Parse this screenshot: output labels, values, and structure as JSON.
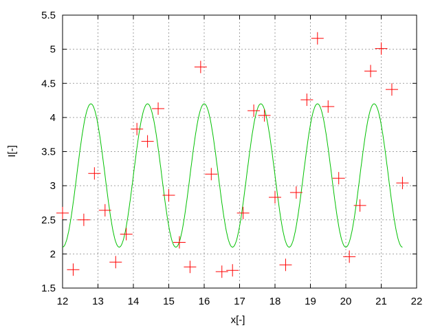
{
  "chart_data": {
    "type": "scatter",
    "title": "",
    "xlabel": "x[-]",
    "ylabel": "I[-]",
    "xlim": [
      12,
      22
    ],
    "ylim": [
      1.5,
      5.5
    ],
    "xticks": [
      "12",
      "13",
      "14",
      "15",
      "16",
      "17",
      "18",
      "19",
      "20",
      "21",
      "22"
    ],
    "yticks": [
      "1.5",
      "2",
      "2.5",
      "3",
      "3.5",
      "4",
      "4.5",
      "5",
      "5.5"
    ],
    "grid": true,
    "colors": {
      "points": "#ff0000",
      "curve": "#00c000",
      "grid": "#a0a0a0"
    },
    "series": [
      {
        "type": "scatter",
        "marker": "plus",
        "x": [
          12.0,
          12.3,
          12.6,
          12.9,
          13.2,
          13.5,
          13.8,
          14.1,
          14.4,
          14.7,
          15.0,
          15.3,
          15.6,
          15.9,
          16.2,
          16.5,
          16.8,
          17.1,
          17.4,
          17.7,
          18.0,
          18.3,
          18.6,
          18.9,
          19.2,
          19.5,
          19.8,
          20.1,
          20.4,
          20.7,
          21.0,
          21.3,
          21.6
        ],
        "y": [
          2.6,
          1.77,
          2.5,
          3.18,
          2.64,
          1.88,
          2.29,
          3.83,
          3.65,
          4.13,
          2.86,
          2.17,
          1.81,
          4.74,
          3.17,
          1.74,
          1.76,
          2.6,
          4.1,
          4.03,
          2.83,
          1.84,
          2.9,
          4.26,
          5.16,
          4.16,
          3.11,
          1.96,
          2.71,
          4.68,
          5.01,
          4.41,
          3.04
        ]
      },
      {
        "type": "line",
        "function": "3.15 - 1.05*cos(2*pi*(x-12)/1.6)",
        "x_range": [
          12,
          21.6
        ]
      }
    ]
  }
}
